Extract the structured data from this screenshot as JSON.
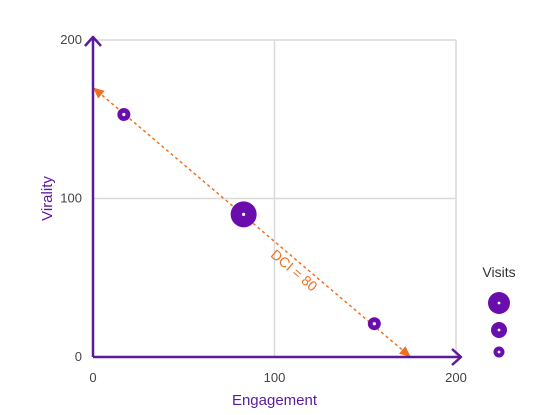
{
  "chart_data": {
    "type": "scatter",
    "xlabel": "Engagement",
    "ylabel": "Virality",
    "xlim": [
      0,
      200
    ],
    "ylim": [
      0,
      200
    ],
    "x_ticks": [
      "0",
      "100",
      "200"
    ],
    "y_ticks": [
      "0",
      "100",
      "200"
    ],
    "grid": true,
    "points": [
      {
        "x": 17,
        "y": 153,
        "size": "small"
      },
      {
        "x": 83,
        "y": 90,
        "size": "large"
      },
      {
        "x": 155,
        "y": 21,
        "size": "small"
      }
    ],
    "reference_line": {
      "label": "DCI = 80",
      "x1": 0,
      "y1": 170,
      "x2": 175,
      "y2": 0
    },
    "legend": {
      "title": "Visits",
      "placement": "right",
      "sizes": [
        "large",
        "medium",
        "small"
      ]
    }
  },
  "colors": {
    "axis": "#5b1a9a",
    "marker": "#6a0dad",
    "reference": "#f07020",
    "grid": "#d9d9d9"
  }
}
